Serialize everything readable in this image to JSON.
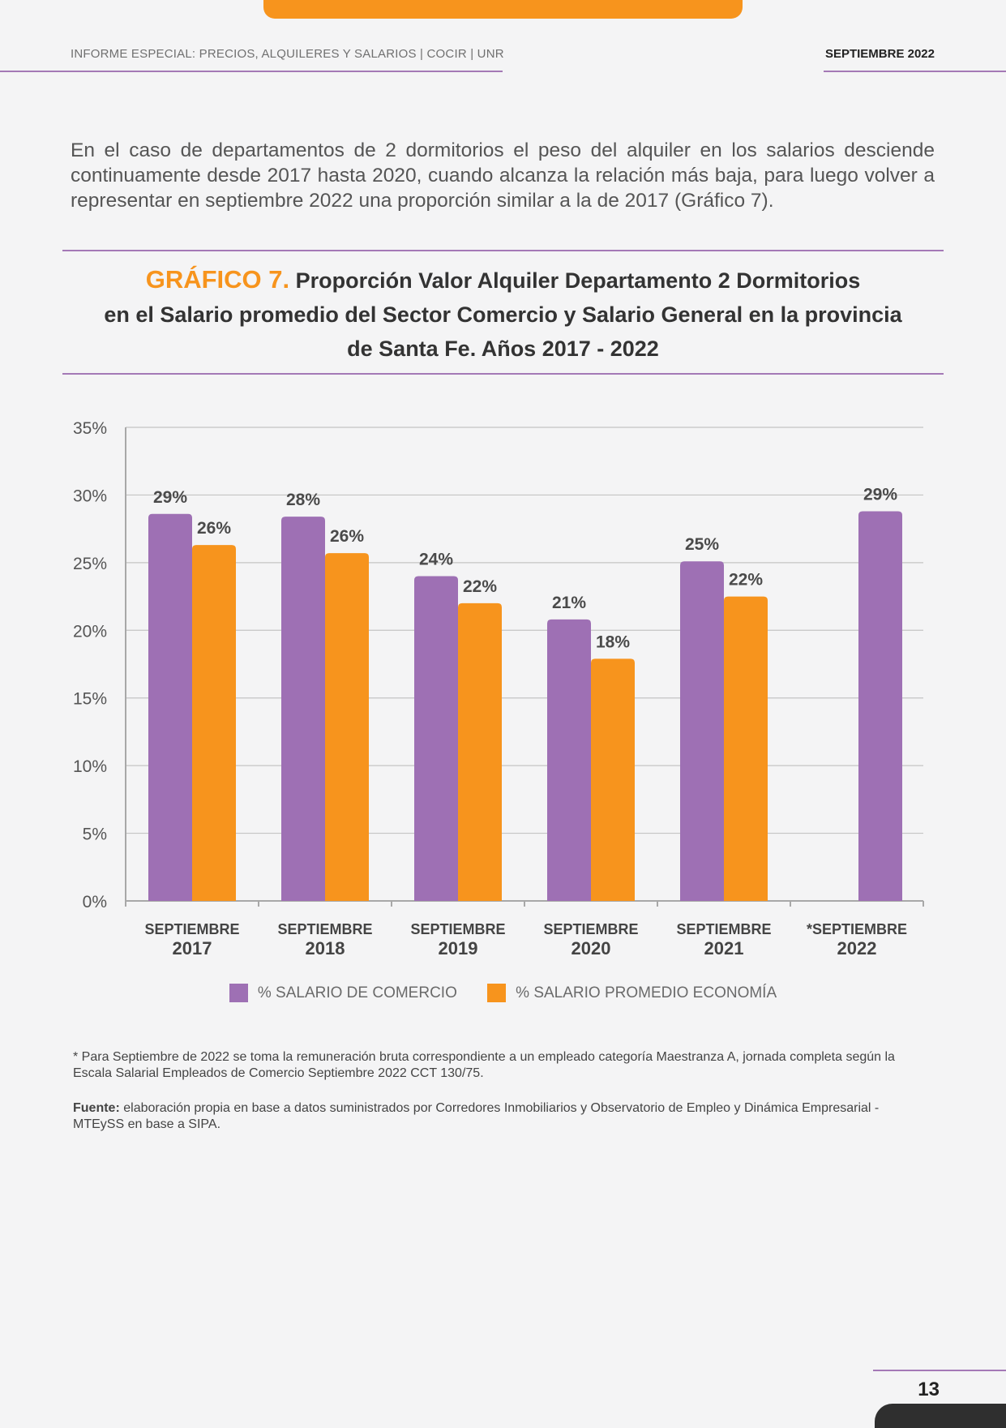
{
  "header": {
    "report_title": "INFORME ESPECIAL: PRECIOS, ALQUILERES Y SALARIOS | COCIR | UNR",
    "date": "SEPTIEMBRE 2022"
  },
  "intro_text": "En el caso de departamentos de 2 dormitorios el peso del alquiler en los salarios desciende continuamente desde 2017 hasta 2020, cuando alcanza la relación más baja, para luego volver a representar en septiembre 2022 una proporción similar a la de 2017 (Gráfico 7).",
  "chart_title": {
    "label": "GRÁFICO 7.",
    "line1": "Proporción Valor Alquiler Departamento 2 Dormitorios",
    "line2": "en el Salario promedio del Sector Comercio y Salario General en la provincia",
    "line3": "de Santa Fe. Años 2017 - 2022"
  },
  "chart_data": {
    "type": "bar",
    "categories": [
      {
        "month": "SEPTIEMBRE",
        "year": "2017"
      },
      {
        "month": "SEPTIEMBRE",
        "year": "2018"
      },
      {
        "month": "SEPTIEMBRE",
        "year": "2019"
      },
      {
        "month": "SEPTIEMBRE",
        "year": "2020"
      },
      {
        "month": "SEPTIEMBRE",
        "year": "2021"
      },
      {
        "month": "*SEPTIEMBRE",
        "year": "2022"
      }
    ],
    "series": [
      {
        "name": "% SALARIO DE COMERCIO",
        "color": "#9e70b4",
        "values": [
          28.6,
          28.4,
          24.0,
          20.8,
          25.1,
          28.8
        ],
        "labels": [
          "29%",
          "28%",
          "24%",
          "21%",
          "25%",
          "29%"
        ]
      },
      {
        "name": "% SALARIO PROMEDIO ECONOMÍA",
        "color": "#f7941d",
        "values": [
          26.3,
          25.7,
          22.0,
          17.9,
          22.5,
          null
        ],
        "labels": [
          "26%",
          "26%",
          "22%",
          "18%",
          "22%",
          null
        ]
      }
    ],
    "yticks": [
      "0%",
      "5%",
      "10%",
      "15%",
      "20%",
      "25%",
      "30%",
      "35%"
    ],
    "ylim": [
      0,
      35
    ],
    "grid": true,
    "legend_position": "bottom"
  },
  "footnote": {
    "text": "* Para Septiembre de 2022 se toma la remuneración bruta correspondiente a un empleado categoría Maestranza A, jornada completa según la Escala Salarial Empleados de Comercio Septiembre 2022 CCT 130/75."
  },
  "source": {
    "label": "Fuente:",
    "text": "elaboración propia en base a datos suministrados por Corredores Inmobiliarios y Observatorio de Empleo y Dinámica Empresarial - MTEySS en base a SIPA."
  },
  "page_number": "13"
}
